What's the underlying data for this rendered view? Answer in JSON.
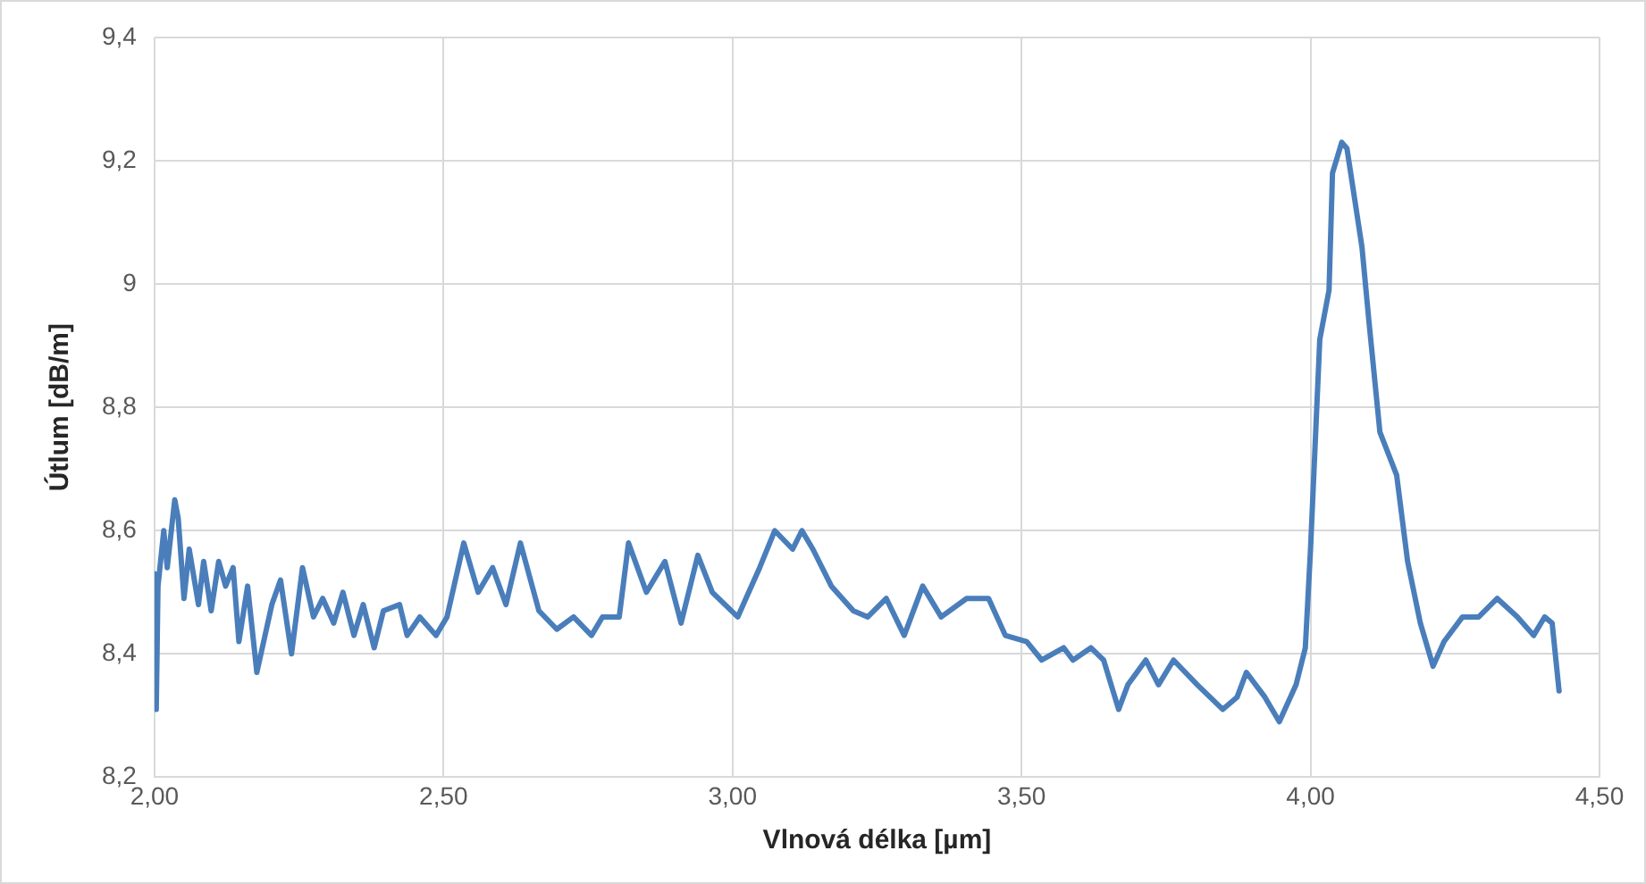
{
  "chart_data": {
    "type": "line",
    "xlabel": "Vlnová délka [µm]",
    "ylabel": "Útlum [dB/m]",
    "xlim": [
      2.0,
      4.5
    ],
    "xticks": [
      {
        "value": 2.0,
        "label": "2,00"
      },
      {
        "value": 2.5,
        "label": "2,50"
      },
      {
        "value": 3.0,
        "label": "3,00"
      },
      {
        "value": 3.5,
        "label": "3,50"
      },
      {
        "value": 4.0,
        "label": "4,00"
      },
      {
        "value": 4.5,
        "label": "4,50"
      }
    ],
    "ylim": [
      8.2,
      9.4
    ],
    "yticks": [
      {
        "value": 8.2,
        "label": "8,2"
      },
      {
        "value": 8.4,
        "label": "8,4"
      },
      {
        "value": 8.6,
        "label": "8,6"
      },
      {
        "value": 8.8,
        "label": "8,8"
      },
      {
        "value": 9.0,
        "label": "9"
      },
      {
        "value": 9.2,
        "label": "9,2"
      },
      {
        "value": 9.4,
        "label": "9,4"
      }
    ],
    "grid": true,
    "legend": false,
    "marker": "none",
    "line_style": "solid",
    "series": [
      {
        "color": "#4a7ebb",
        "x": [
          2.0,
          2.003,
          2.006,
          2.016,
          2.022,
          2.035,
          2.041,
          2.051,
          2.06,
          2.076,
          2.085,
          2.098,
          2.111,
          2.123,
          2.136,
          2.146,
          2.161,
          2.177,
          2.203,
          2.218,
          2.237,
          2.256,
          2.275,
          2.291,
          2.31,
          2.326,
          2.345,
          2.361,
          2.38,
          2.396,
          2.424,
          2.437,
          2.459,
          2.487,
          2.506,
          2.535,
          2.56,
          2.585,
          2.608,
          2.633,
          2.665,
          2.696,
          2.725,
          2.756,
          2.775,
          2.804,
          2.82,
          2.851,
          2.883,
          2.911,
          2.94,
          2.965,
          3.009,
          3.028,
          3.047,
          3.073,
          3.104,
          3.12,
          3.139,
          3.171,
          3.209,
          3.234,
          3.266,
          3.297,
          3.329,
          3.361,
          3.405,
          3.443,
          3.472,
          3.509,
          3.535,
          3.573,
          3.589,
          3.62,
          3.642,
          3.668,
          3.684,
          3.715,
          3.737,
          3.763,
          3.804,
          3.826,
          3.848,
          3.873,
          3.889,
          3.921,
          3.946,
          3.975,
          3.991,
          4.0,
          4.016,
          4.032,
          4.038,
          4.054,
          4.063,
          4.089,
          4.101,
          4.12,
          4.149,
          4.168,
          4.19,
          4.212,
          4.231,
          4.263,
          4.291,
          4.323,
          4.358,
          4.386,
          4.405,
          4.418,
          4.43
        ],
        "values": [
          8.53,
          8.31,
          8.51,
          8.6,
          8.54,
          8.65,
          8.62,
          8.49,
          8.57,
          8.48,
          8.55,
          8.47,
          8.55,
          8.51,
          8.54,
          8.42,
          8.51,
          8.37,
          8.48,
          8.52,
          8.4,
          8.54,
          8.46,
          8.49,
          8.45,
          8.5,
          8.43,
          8.48,
          8.41,
          8.47,
          8.48,
          8.43,
          8.46,
          8.43,
          8.46,
          8.58,
          8.5,
          8.54,
          8.48,
          8.58,
          8.47,
          8.44,
          8.46,
          8.43,
          8.46,
          8.46,
          8.58,
          8.5,
          8.55,
          8.45,
          8.56,
          8.5,
          8.46,
          8.5,
          8.54,
          8.6,
          8.57,
          8.6,
          8.57,
          8.51,
          8.47,
          8.46,
          8.49,
          8.43,
          8.51,
          8.46,
          8.49,
          8.49,
          8.43,
          8.42,
          8.39,
          8.41,
          8.39,
          8.41,
          8.39,
          8.31,
          8.35,
          8.39,
          8.35,
          8.39,
          8.35,
          8.33,
          8.31,
          8.33,
          8.37,
          8.33,
          8.29,
          8.35,
          8.41,
          8.57,
          8.91,
          8.99,
          9.18,
          9.23,
          9.22,
          9.06,
          8.94,
          8.76,
          8.69,
          8.55,
          8.45,
          8.38,
          8.42,
          8.46,
          8.46,
          8.49,
          8.46,
          8.43,
          8.46,
          8.45,
          8.34
        ]
      }
    ]
  }
}
